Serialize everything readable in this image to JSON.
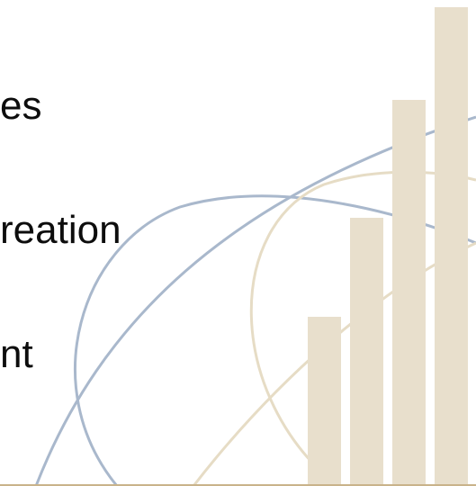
{
  "bullets": [
    "es",
    "reation",
    "nt"
  ],
  "colors": {
    "background": "#ffffff",
    "text": "#0d0d0d",
    "bars": "#e8dfcc",
    "arc_blue": "#a9b8cc",
    "arc_beige": "#e6dcc5",
    "bottom_rule": "#c9b38a"
  }
}
